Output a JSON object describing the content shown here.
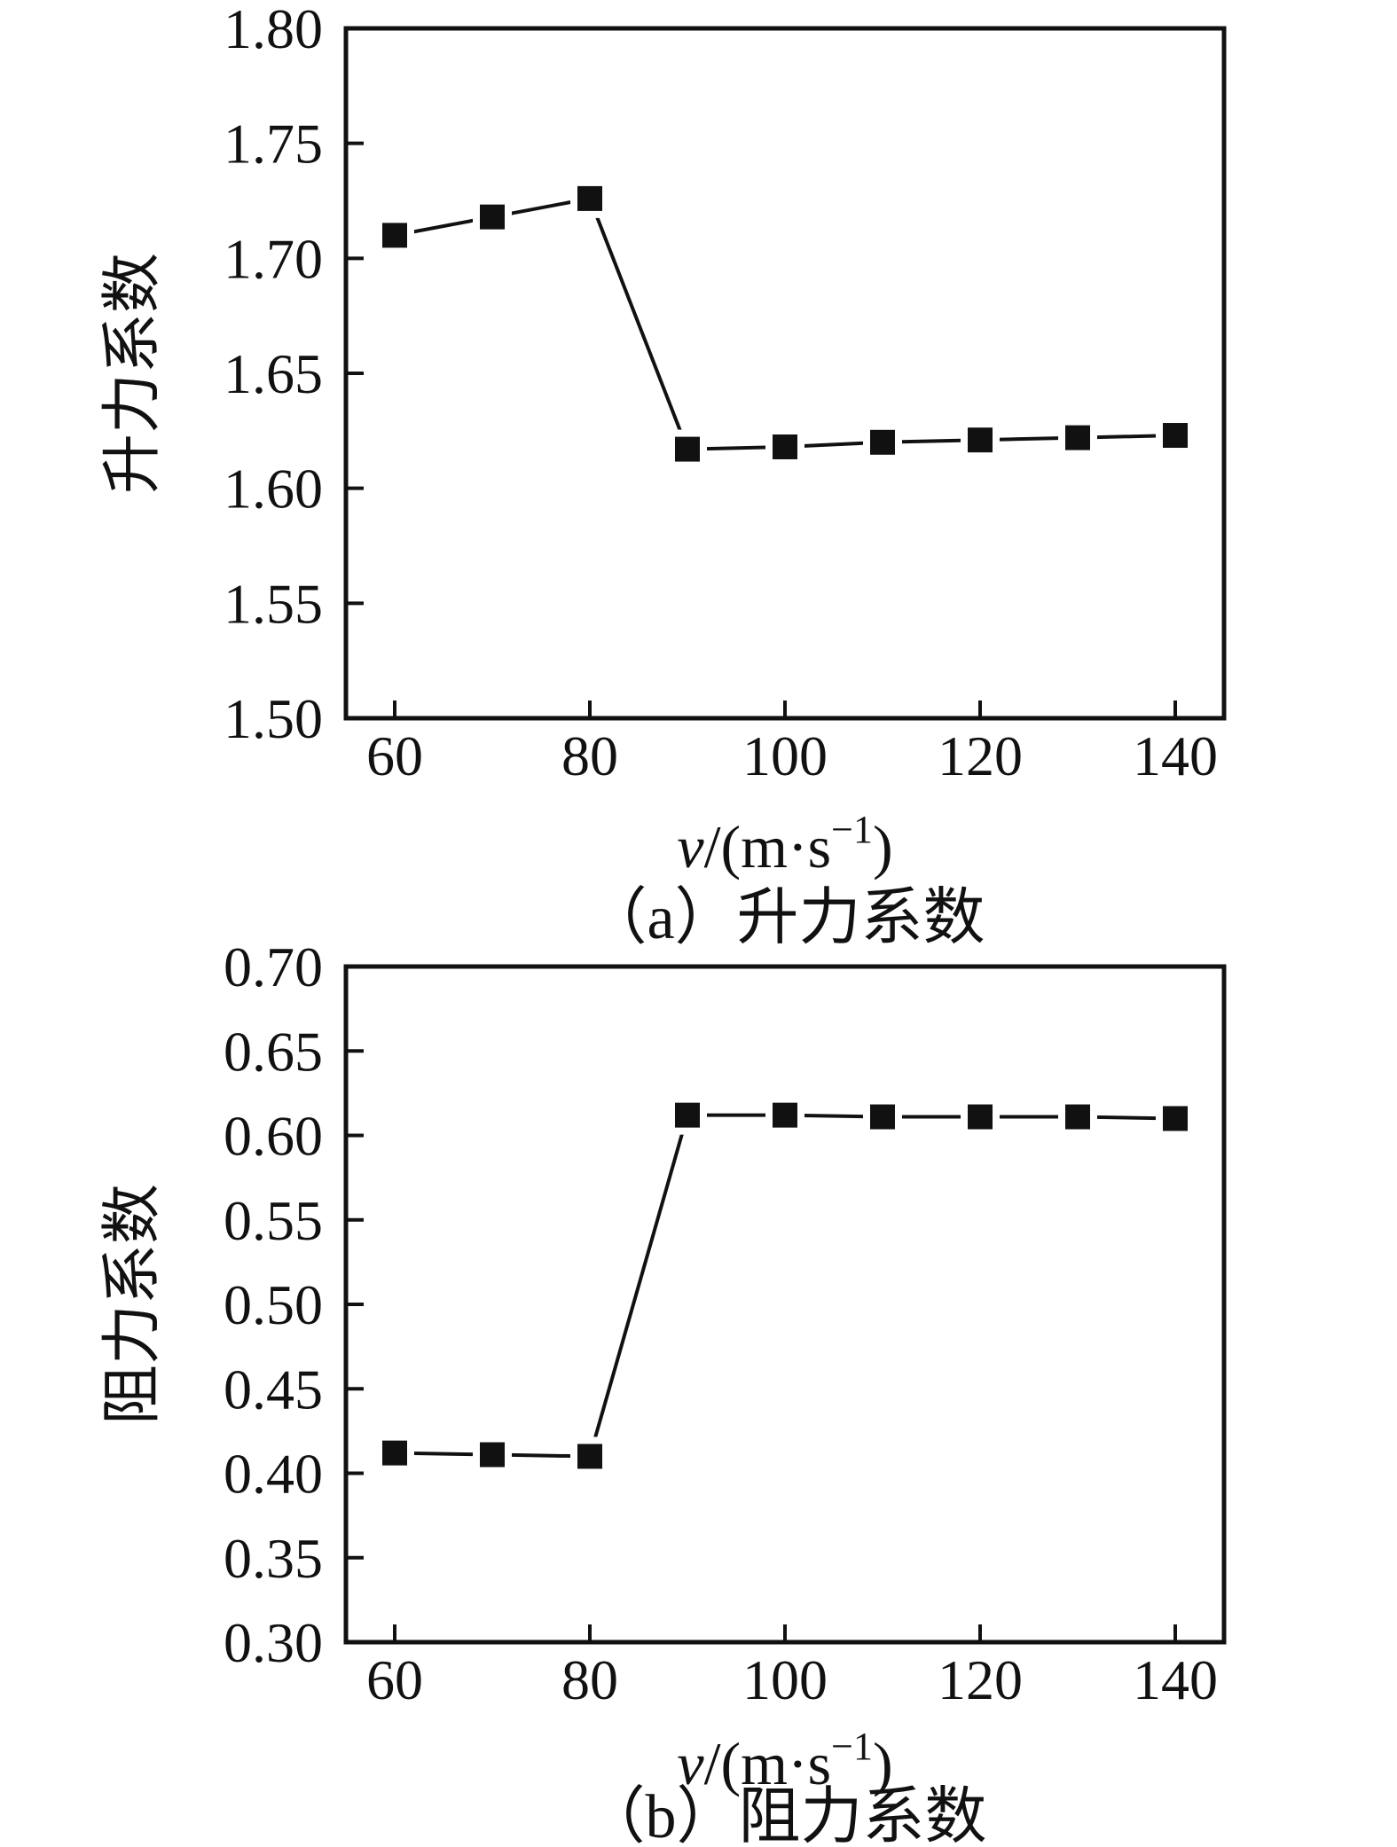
{
  "page": {
    "background": "#ffffff",
    "ink": "#111111"
  },
  "charts": [
    {
      "id": "a",
      "ylabel": "升力系数",
      "caption": "（a）升力系数",
      "xlabel": "v/(m·s⁻¹)",
      "xlabel_parts": {
        "variable": "v",
        "mid": "/(m·s",
        "sup": "−1",
        "end": ")"
      },
      "chart_data": {
        "type": "line",
        "x": [
          60,
          70,
          80,
          90,
          100,
          110,
          120,
          130,
          140
        ],
        "series": [
          {
            "name": "升力系数",
            "values": [
              1.71,
              1.718,
              1.726,
              1.617,
              1.618,
              1.62,
              1.621,
              1.622,
              1.623
            ]
          }
        ],
        "title": "（a）升力系数",
        "xlabel": "v/(m·s⁻¹)",
        "ylabel": "升力系数",
        "xlim": [
          55,
          145
        ],
        "ylim": [
          1.5,
          1.8
        ],
        "xticks": [
          60,
          80,
          100,
          120,
          140
        ],
        "yticks": [
          1.5,
          1.55,
          1.6,
          1.65,
          1.7,
          1.75,
          1.8
        ],
        "ytick_decimals": 2,
        "marker": "filled-square",
        "line_style": "solid",
        "color": "#111111",
        "grid": false,
        "legend": "none"
      }
    },
    {
      "id": "b",
      "ylabel": "阻力系数",
      "caption": "（b）阻力系数",
      "xlabel": "v/(m·s⁻¹)",
      "xlabel_parts": {
        "variable": "v",
        "mid": "/(m·s",
        "sup": "−1",
        "end": ")"
      },
      "chart_data": {
        "type": "line",
        "x": [
          60,
          70,
          80,
          90,
          100,
          110,
          120,
          130,
          140
        ],
        "series": [
          {
            "name": "阻力系数",
            "values": [
              0.412,
              0.411,
              0.41,
              0.612,
              0.612,
              0.611,
              0.611,
              0.611,
              0.61
            ]
          }
        ],
        "title": "（b）阻力系数",
        "xlabel": "v/(m·s⁻¹)",
        "ylabel": "阻力系数",
        "xlim": [
          55,
          145
        ],
        "ylim": [
          0.3,
          0.7
        ],
        "xticks": [
          60,
          80,
          100,
          120,
          140
        ],
        "yticks": [
          0.3,
          0.35,
          0.4,
          0.45,
          0.5,
          0.55,
          0.6,
          0.65,
          0.7
        ],
        "ytick_decimals": 2,
        "marker": "filled-square",
        "line_style": "solid",
        "color": "#111111",
        "grid": false,
        "legend": "none"
      }
    }
  ]
}
